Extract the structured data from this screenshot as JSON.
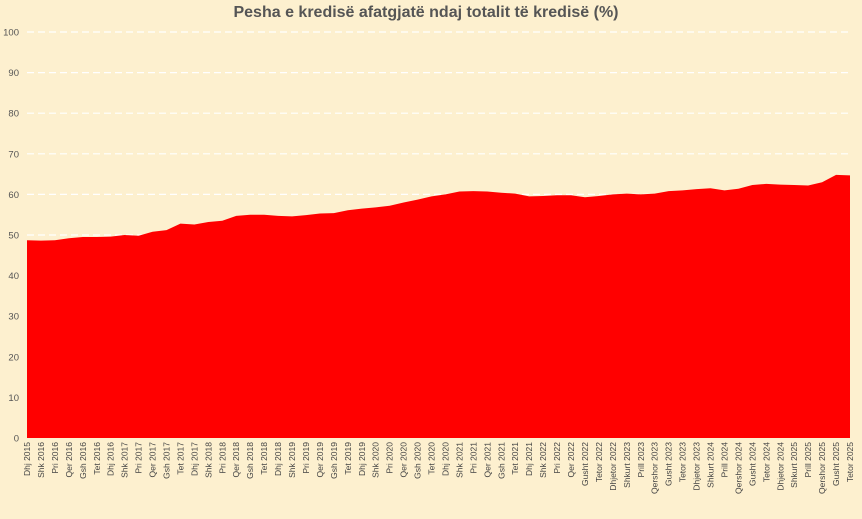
{
  "chart_data": {
    "type": "area",
    "title": "Pesha e kredisë afatgjatë ndaj totalit të kredisë (%)",
    "xlabel": "",
    "ylabel": "",
    "ylim": [
      0,
      100
    ],
    "yticks": [
      0,
      10,
      20,
      30,
      40,
      50,
      60,
      70,
      80,
      90,
      100
    ],
    "grid": true,
    "legend": "none",
    "colors": {
      "area": "#ff0000",
      "background": "#fdf0cf",
      "grid": "#ffffff"
    },
    "x_tick_labels": [
      "Dhj 2015",
      "Shk 2016",
      "Pri 2016",
      "Qer 2016",
      "Gsh 2016",
      "Tet 2016",
      "Dhj 2016",
      "Shk 2017",
      "Pri 2017",
      "Qer 2017",
      "Gsh 2017",
      "Tet 2017",
      "Dhj 2017",
      "Shk 2018",
      "Pri 2018",
      "Qer 2018",
      "Gsh 2018",
      "Tet 2018",
      "Dhj 2018",
      "Shk 2019",
      "Pri 2019",
      "Qer 2019",
      "Gsh 2019",
      "Tet 2019",
      "Dhj 2019",
      "Shk 2020",
      "Pri 2020",
      "Qer 2020",
      "Gsh 2020",
      "Tet 2020",
      "Dhj 2020",
      "Shk 2021",
      "Pri 2021",
      "Qer 2021",
      "Gsh 2021",
      "Tet 2021",
      "Dhj 2021",
      "Shk 2022",
      "Pri 2022",
      "Qer 2022",
      "Gusht 2022",
      "Tetor 2022",
      "Dhjetor 2022",
      "Shkurt 2023",
      "Prill 2023",
      "Qershor 2023",
      "Gusht 2023",
      "Tetor 2023",
      "Dhjetor 2023",
      "Shkurt 2024",
      "Prill 2024",
      "Qershor 2024",
      "Gusht 2024",
      "Tetor 2024",
      "Dhjetor 2024",
      "Shkurt 2025",
      "Prill 2025",
      "Qershor 2025",
      "Gusht 2025",
      "Tetor 2025"
    ],
    "series": [
      {
        "values": [
          48.7,
          48.6,
          48.7,
          49.2,
          49.5,
          49.5,
          49.6,
          50.0,
          49.8,
          50.8,
          51.2,
          52.8,
          52.6,
          53.2,
          53.5,
          54.7,
          55.0,
          55.0,
          54.7,
          54.6,
          54.9,
          55.3,
          55.4,
          56.1,
          56.5,
          56.8,
          57.2,
          58.0,
          58.7,
          59.5,
          60.0,
          60.7,
          60.8,
          60.7,
          60.4,
          60.2,
          59.5,
          59.6,
          59.8,
          59.8,
          59.3,
          59.6,
          60.0,
          60.2,
          60.0,
          60.2,
          60.8,
          61.0,
          61.3,
          61.5,
          61.0,
          61.4,
          62.3,
          62.6,
          62.4,
          62.3,
          62.2,
          63.0,
          64.8,
          64.7
        ]
      }
    ]
  }
}
